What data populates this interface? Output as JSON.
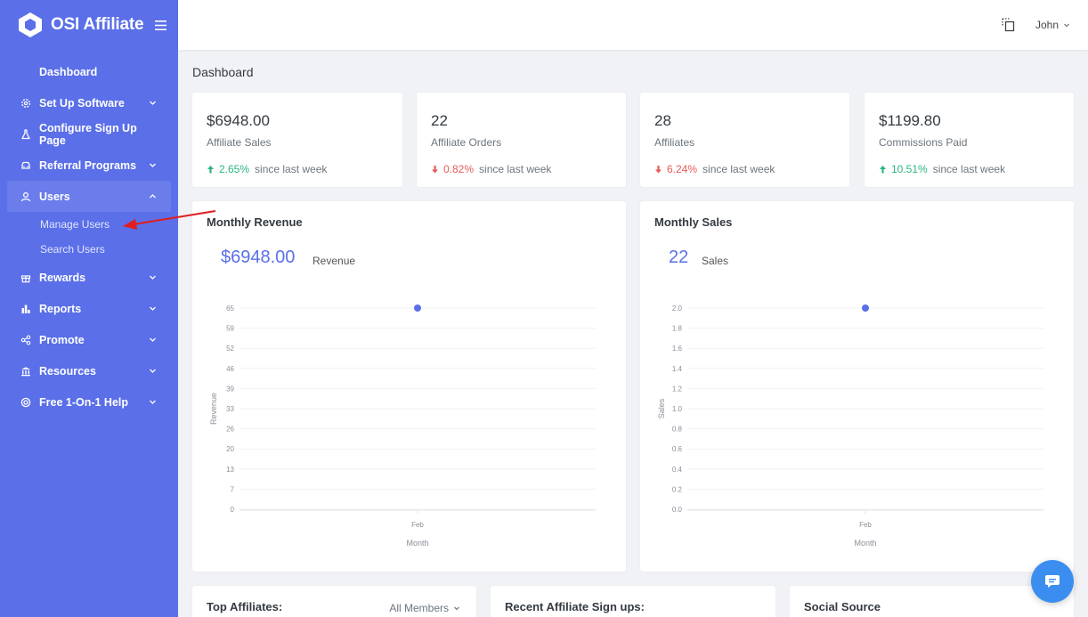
{
  "app": {
    "name": "OSI Affiliate"
  },
  "sidebar": {
    "items": [
      {
        "label": "Dashboard",
        "icon": "none",
        "expandable": false
      },
      {
        "label": "Set Up Software",
        "icon": "gear-icon",
        "expandable": true
      },
      {
        "label": "Configure Sign Up Page",
        "icon": "flask-icon",
        "expandable": false
      },
      {
        "label": "Referral Programs",
        "icon": "car-icon",
        "expandable": true
      },
      {
        "label": "Users",
        "icon": "user-icon",
        "expandable": true,
        "expanded": true,
        "children": [
          {
            "label": "Manage Users"
          },
          {
            "label": "Search Users"
          }
        ]
      },
      {
        "label": "Rewards",
        "icon": "gift-icon",
        "expandable": true
      },
      {
        "label": "Reports",
        "icon": "bar-chart-icon",
        "expandable": true
      },
      {
        "label": "Promote",
        "icon": "share-icon",
        "expandable": true
      },
      {
        "label": "Resources",
        "icon": "bank-icon",
        "expandable": true
      },
      {
        "label": "Free 1-On-1 Help",
        "icon": "lifebuoy-icon",
        "expandable": true
      }
    ]
  },
  "topbar": {
    "user_name": "John"
  },
  "page": {
    "title": "Dashboard"
  },
  "stats": [
    {
      "value": "$6948.00",
      "label": "Affiliate Sales",
      "direction": "up",
      "change": "2.65%",
      "suffix": "since last week"
    },
    {
      "value": "22",
      "label": "Affiliate Orders",
      "direction": "down",
      "change": "0.82%",
      "suffix": "since last week"
    },
    {
      "value": "28",
      "label": "Affiliates",
      "direction": "down",
      "change": "6.24%",
      "suffix": "since last week"
    },
    {
      "value": "$1199.80",
      "label": "Commissions Paid",
      "direction": "up",
      "change": "10.51%",
      "suffix": "since last week"
    }
  ],
  "revenue_card": {
    "title": "Monthly Revenue",
    "total": "$6948.00",
    "total_label": "Revenue"
  },
  "sales_card": {
    "title": "Monthly Sales",
    "total": "22",
    "total_label": "Sales"
  },
  "bottom": {
    "top_affiliates": {
      "title": "Top Affiliates:",
      "filter": "All Members"
    },
    "recent_signups": {
      "title": "Recent Affiliate Sign ups:"
    },
    "social_source": {
      "title": "Social Source"
    }
  },
  "colors": {
    "sidebar": "#5a6fe8",
    "accent": "#5a6fe8",
    "up": "#2ab57d",
    "down": "#e85a5a",
    "annotation": "#e11d1d",
    "chat": "#3b8ef0"
  },
  "chart_data": [
    {
      "type": "scatter",
      "title": "Monthly Revenue",
      "xlabel": "Month",
      "ylabel": "Revenue",
      "categories": [
        "Feb"
      ],
      "values": [
        65
      ],
      "yticks": [
        "0",
        "7",
        "13",
        "20",
        "26",
        "33",
        "39",
        "46",
        "52",
        "59",
        "65"
      ],
      "ylim": [
        0,
        65
      ],
      "grid": true
    },
    {
      "type": "scatter",
      "title": "Monthly Sales",
      "xlabel": "Month",
      "ylabel": "Sales",
      "categories": [
        "Feb"
      ],
      "values": [
        2.0
      ],
      "yticks": [
        "0.0",
        "0.2",
        "0.4",
        "0.6",
        "0.8",
        "1.0",
        "1.2",
        "1.4",
        "1.6",
        "1.8",
        "2.0"
      ],
      "ylim": [
        0,
        2.0
      ],
      "grid": true
    }
  ]
}
